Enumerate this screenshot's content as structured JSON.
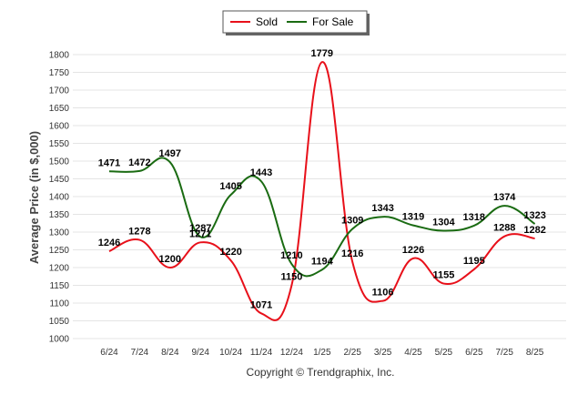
{
  "chart_data": {
    "type": "line",
    "categories": [
      "6/24",
      "7/24",
      "8/24",
      "9/24",
      "10/24",
      "11/24",
      "12/24",
      "1/25",
      "2/25",
      "3/25",
      "4/25",
      "5/25",
      "6/25",
      "7/25",
      "8/25"
    ],
    "series": [
      {
        "name": "Sold",
        "color": "#e8101a",
        "values": [
          1246,
          1278,
          1200,
          1271,
          1220,
          1071,
          1150,
          1779,
          1216,
          1106,
          1226,
          1155,
          1195,
          1288,
          1282
        ]
      },
      {
        "name": "For Sale",
        "color": "#1a6b12",
        "values": [
          1471,
          1472,
          1497,
          1287,
          1405,
          1443,
          1210,
          1194,
          1309,
          1343,
          1319,
          1304,
          1318,
          1374,
          1323
        ]
      }
    ],
    "ylabel": "Average Price (in $,000)",
    "xlabel": "",
    "ylim": [
      1000,
      1800
    ],
    "yticks": [
      1000,
      1050,
      1100,
      1150,
      1200,
      1250,
      1300,
      1350,
      1400,
      1450,
      1500,
      1550,
      1600,
      1650,
      1700,
      1750,
      1800
    ],
    "grid": true,
    "legend_position": "top-center"
  },
  "footer": {
    "copyright": "Copyright © Trendgraphix, Inc."
  }
}
